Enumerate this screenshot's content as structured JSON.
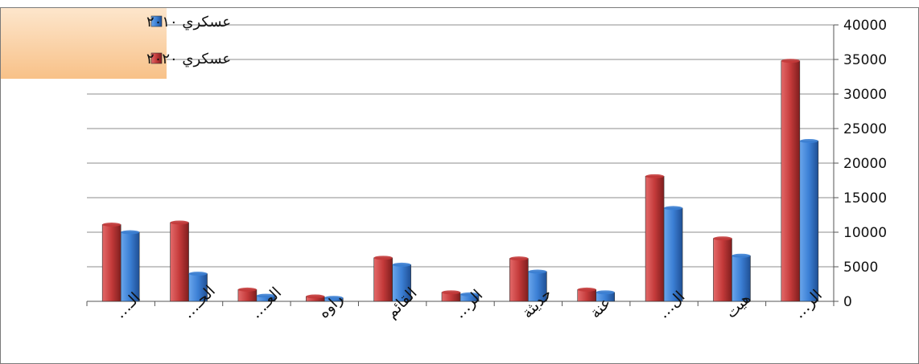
{
  "chart_data": {
    "type": "bar",
    "orientation": "vertical",
    "y_axis_position": "right",
    "categories": [
      "الر…",
      "هيت",
      "ال…",
      "عنة",
      "حديثة",
      "الر…",
      "القائم",
      "راوه",
      "العـ…",
      "الحـ…",
      "الـ…"
    ],
    "series": [
      {
        "name": "عسكري ٢٠١٠",
        "color": "#3b7fd4",
        "values": [
          23200,
          6600,
          13500,
          1300,
          4300,
          1000,
          5300,
          500,
          800,
          4000,
          10000
        ]
      },
      {
        "name": "عسكري ٢٠٢٠",
        "color": "#c43a3a",
        "values": [
          34800,
          9100,
          18100,
          1700,
          6200,
          1300,
          6300,
          700,
          1700,
          11400,
          11100
        ]
      }
    ],
    "yticks": [
      "0",
      "5000",
      "10000",
      "15000",
      "20000",
      "25000",
      "30000",
      "35000",
      "40000"
    ],
    "ylim": [
      0,
      40000
    ],
    "grid": true,
    "legend_position": "top-left",
    "legend_background": "#fbd3a6",
    "title": "",
    "xlabel": "",
    "ylabel": ""
  }
}
